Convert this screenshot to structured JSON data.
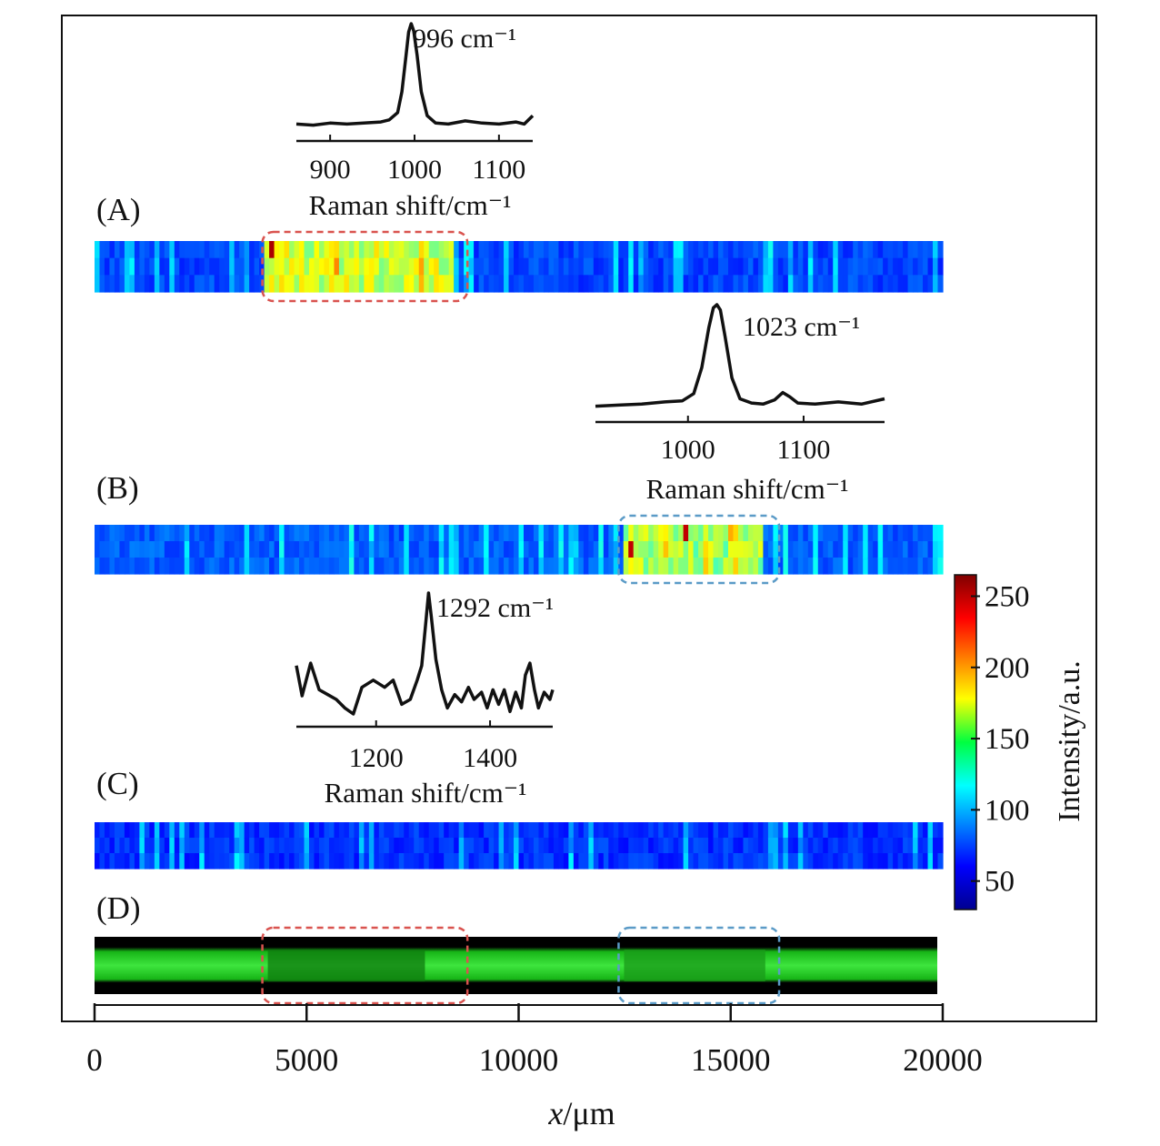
{
  "chart_data": {
    "type": "heatmap",
    "x_axis": {
      "label_italic": "x",
      "label_unit": "/μm",
      "min": 0,
      "max": 24500,
      "ticks": [
        0,
        5000,
        10000,
        15000,
        20000
      ],
      "tick_labels": [
        "0",
        "5000",
        "10000",
        "15000",
        "20000"
      ]
    },
    "colorbar": {
      "label": "Intensity/a.u.",
      "min": 30,
      "max": 265,
      "ticks": [
        50,
        100,
        150,
        200,
        250
      ],
      "tick_labels": [
        "50",
        "100",
        "150",
        "200",
        "250"
      ],
      "colormap": "jet"
    },
    "strips": [
      {
        "label": "(A)",
        "type": "intensity-map",
        "x_range": [
          0,
          20000
        ],
        "background": 75,
        "hotspot": {
          "x_range": [
            4000,
            8500
          ],
          "level": 165,
          "max": 255
        },
        "highlight": {
          "x_range": [
            4000,
            8750
          ],
          "color": "#d9534f"
        }
      },
      {
        "label": "(B)",
        "type": "intensity-map",
        "x_range": [
          0,
          20000
        ],
        "background": 80,
        "hotspot": {
          "x_range": [
            12500,
            15800
          ],
          "level": 155,
          "max": 250
        },
        "highlight": {
          "x_range": [
            12400,
            16100
          ],
          "color": "#5b9bc7"
        }
      },
      {
        "label": "(C)",
        "type": "intensity-map",
        "x_range": [
          0,
          20000
        ],
        "background": 70
      },
      {
        "label": "(D)",
        "type": "fluorescence-image",
        "x_range": [
          0,
          20000
        ],
        "highlights": [
          {
            "x_range": [
              4000,
              8750
            ],
            "color": "#d9534f"
          },
          {
            "x_range": [
              12400,
              16100
            ],
            "color": "#5b9bc7"
          }
        ]
      }
    ],
    "insets": [
      {
        "peak_label": "996 cm⁻¹",
        "xlabel": "Raman shift/cm⁻¹",
        "x_range": [
          860,
          1140
        ],
        "ticks": [
          900,
          1000,
          1100
        ],
        "tick_labels": [
          "900",
          "1000",
          "1100"
        ],
        "x": [
          860,
          880,
          900,
          920,
          940,
          960,
          970,
          980,
          985,
          990,
          993,
          996,
          999,
          1003,
          1008,
          1015,
          1025,
          1040,
          1060,
          1080,
          1100,
          1120,
          1130,
          1140
        ],
        "y": [
          0.04,
          0.03,
          0.05,
          0.04,
          0.05,
          0.06,
          0.08,
          0.15,
          0.35,
          0.7,
          0.92,
          1.0,
          0.93,
          0.7,
          0.35,
          0.12,
          0.05,
          0.04,
          0.07,
          0.05,
          0.04,
          0.06,
          0.04,
          0.12
        ]
      },
      {
        "peak_label": "1023 cm⁻¹",
        "xlabel": "Raman shift/cm⁻¹",
        "x_range": [
          920,
          1170
        ],
        "ticks": [
          1000,
          1100
        ],
        "tick_labels": [
          "1000",
          "1100"
        ],
        "x": [
          920,
          940,
          960,
          980,
          995,
          1005,
          1012,
          1018,
          1022,
          1025,
          1028,
          1032,
          1038,
          1045,
          1055,
          1065,
          1075,
          1082,
          1088,
          1095,
          1110,
          1130,
          1150,
          1170
        ],
        "y": [
          0.03,
          0.04,
          0.05,
          0.07,
          0.08,
          0.15,
          0.4,
          0.78,
          0.97,
          1.0,
          0.95,
          0.7,
          0.3,
          0.1,
          0.06,
          0.05,
          0.09,
          0.16,
          0.12,
          0.06,
          0.05,
          0.07,
          0.05,
          0.1
        ]
      },
      {
        "peak_label": "1292 cm⁻¹",
        "xlabel": "Raman shift/cm⁻¹",
        "x_range": [
          1060,
          1510
        ],
        "ticks": [
          1200,
          1400
        ],
        "tick_labels": [
          "1200",
          "1400"
        ],
        "x": [
          1060,
          1070,
          1085,
          1100,
          1115,
          1130,
          1145,
          1160,
          1175,
          1195,
          1215,
          1230,
          1245,
          1260,
          1272,
          1280,
          1287,
          1292,
          1297,
          1305,
          1315,
          1325,
          1338,
          1350,
          1362,
          1372,
          1385,
          1395,
          1405,
          1415,
          1425,
          1435,
          1445,
          1455,
          1462,
          1470,
          1478,
          1485,
          1495,
          1505,
          1510
        ],
        "y": [
          0.4,
          0.15,
          0.42,
          0.2,
          0.16,
          0.12,
          0.05,
          0.0,
          0.22,
          0.28,
          0.22,
          0.28,
          0.08,
          0.12,
          0.28,
          0.4,
          0.75,
          1.0,
          0.8,
          0.45,
          0.2,
          0.05,
          0.16,
          0.1,
          0.22,
          0.12,
          0.18,
          0.05,
          0.2,
          0.08,
          0.2,
          0.02,
          0.18,
          0.05,
          0.32,
          0.42,
          0.2,
          0.05,
          0.18,
          0.12,
          0.2
        ]
      }
    ]
  }
}
